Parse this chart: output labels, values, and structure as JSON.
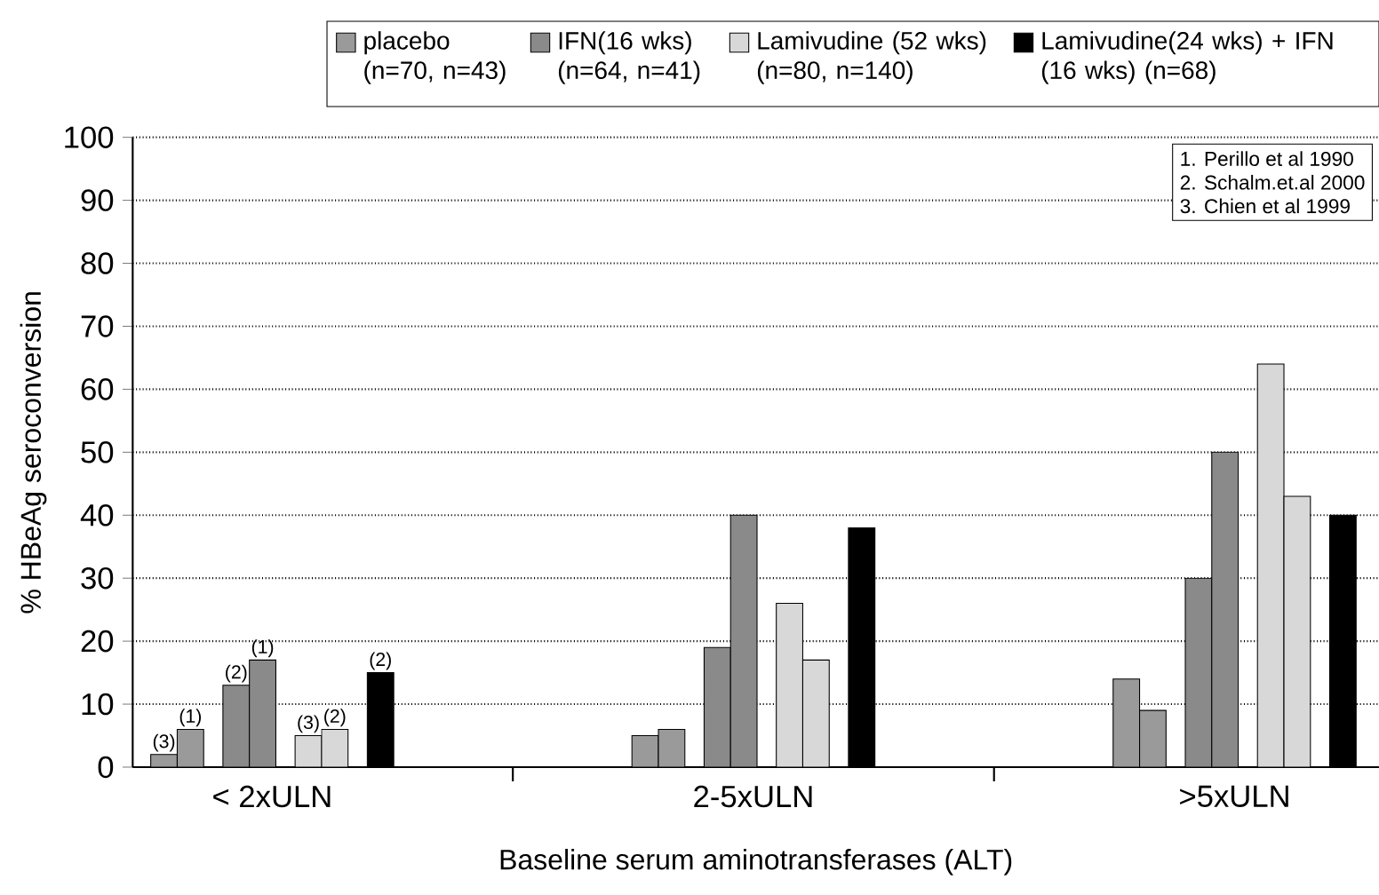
{
  "chart_data": {
    "type": "bar",
    "xlabel": "Baseline serum aminotransferases (ALT)",
    "ylabel": "% HBeAg seroconversion",
    "categories": [
      "< 2xULN",
      "2-5xULN",
      ">5xULN"
    ],
    "series": [
      {
        "name": "placebo (n=70, n=43)",
        "color": "#9a9a9a",
        "values": [
          2,
          5,
          14
        ]
      },
      {
        "color": "#9a9a9a",
        "values": [
          6,
          6,
          9
        ]
      },
      {
        "name": "IFN(16 wks) (n=64, n=41)",
        "color": "#8a8a8a",
        "values": [
          13,
          19,
          30
        ]
      },
      {
        "color": "#8a8a8a",
        "values": [
          17,
          40,
          50
        ]
      },
      {
        "name": "Lamivudine (52 wks) (n=80, n=140)",
        "color": "#d8d8d8",
        "values": [
          5,
          26,
          64
        ]
      },
      {
        "color": "#d8d8d8",
        "values": [
          6,
          17,
          43
        ]
      },
      {
        "name": "Lamivudine(24 wks) + IFN (16 wks) (n=68)",
        "color": "#000000",
        "values": [
          15,
          38,
          40
        ]
      }
    ],
    "ylim": [
      0,
      100
    ],
    "yticks": [
      0,
      10,
      20,
      30,
      40,
      50,
      60,
      70,
      80,
      90,
      100
    ],
    "grid": "y",
    "legend": "top",
    "annotations": [
      "1. Perillo et al 1990",
      "2. Schalm.et.al 2000",
      "3. Chien et al 1999",
      "(3)",
      "(1)",
      "(2)",
      "(1)",
      "(3)",
      "(2)",
      "(2)"
    ]
  }
}
